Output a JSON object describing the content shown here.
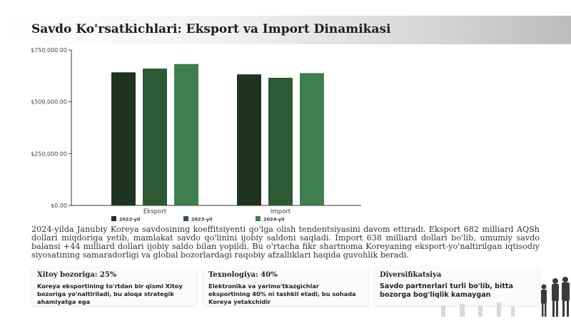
{
  "title": "Savdo Ko'rsatkichlari: Eksport va Import Dinamikasi",
  "chart_data": {
    "type": "bar",
    "categories": [
      "Eksport",
      "Import"
    ],
    "series": [
      {
        "name": "2022-yil",
        "color": "#1e3320",
        "values": [
          642000,
          632000
        ]
      },
      {
        "name": "2023-yil",
        "color": "#2c5a35",
        "values": [
          660000,
          616000
        ]
      },
      {
        "name": "2024-yil",
        "color": "#3e7f4f",
        "values": [
          682000,
          638000
        ]
      }
    ],
    "ylim": [
      0,
      750000
    ],
    "yticks": [
      "$0.00",
      "$250,000.00",
      "$500,000.00",
      "$750,000.00"
    ],
    "yticks_values": [
      0,
      250000,
      500000,
      750000
    ],
    "legend_position": "bottom",
    "grid": false
  },
  "summary": "2024-yilda Janubiy Koreya savdosining koeffitsiyenti qo'lga olish tendentsiyasini davom ettiradi. Eksport 682 milliard AQSh dollari miqdoriga yetib, mamlakat savdo qo'linini ijobiy saldoni saqladi. Import 638 milliard dollari bo'lib, umumiy savdo balansi +44 milliard dollari ijobiy saldo bilan yopildi. Bu o'rtacha fikr shartnoma Koreyaning eksport-yo'naltirilgan iqtisodiy siyosatining samaradorligi va global bozorlardagi raqobiy afzalliklari haqida guvohlik beradi.",
  "cards": [
    {
      "title": "Xitoy bozoriga: 25%",
      "text": "Koreya eksportining to'rtdan bir qismi Xitoy bozoriga yo'naltiriladi, bu aloqa strategik ahamiyatga ega"
    },
    {
      "title": "Texnologiya: 40%",
      "text": "Elektronika va yarimo'tkazgichlar eksportining 40% ni tashkil etadi, bu sohada Koreya yetakchidir"
    },
    {
      "title": "Diversifikatsiya",
      "text": "Savdo partnerlari turli bo'lib, bitta bozorga bog'liqlik kamaygan"
    }
  ]
}
